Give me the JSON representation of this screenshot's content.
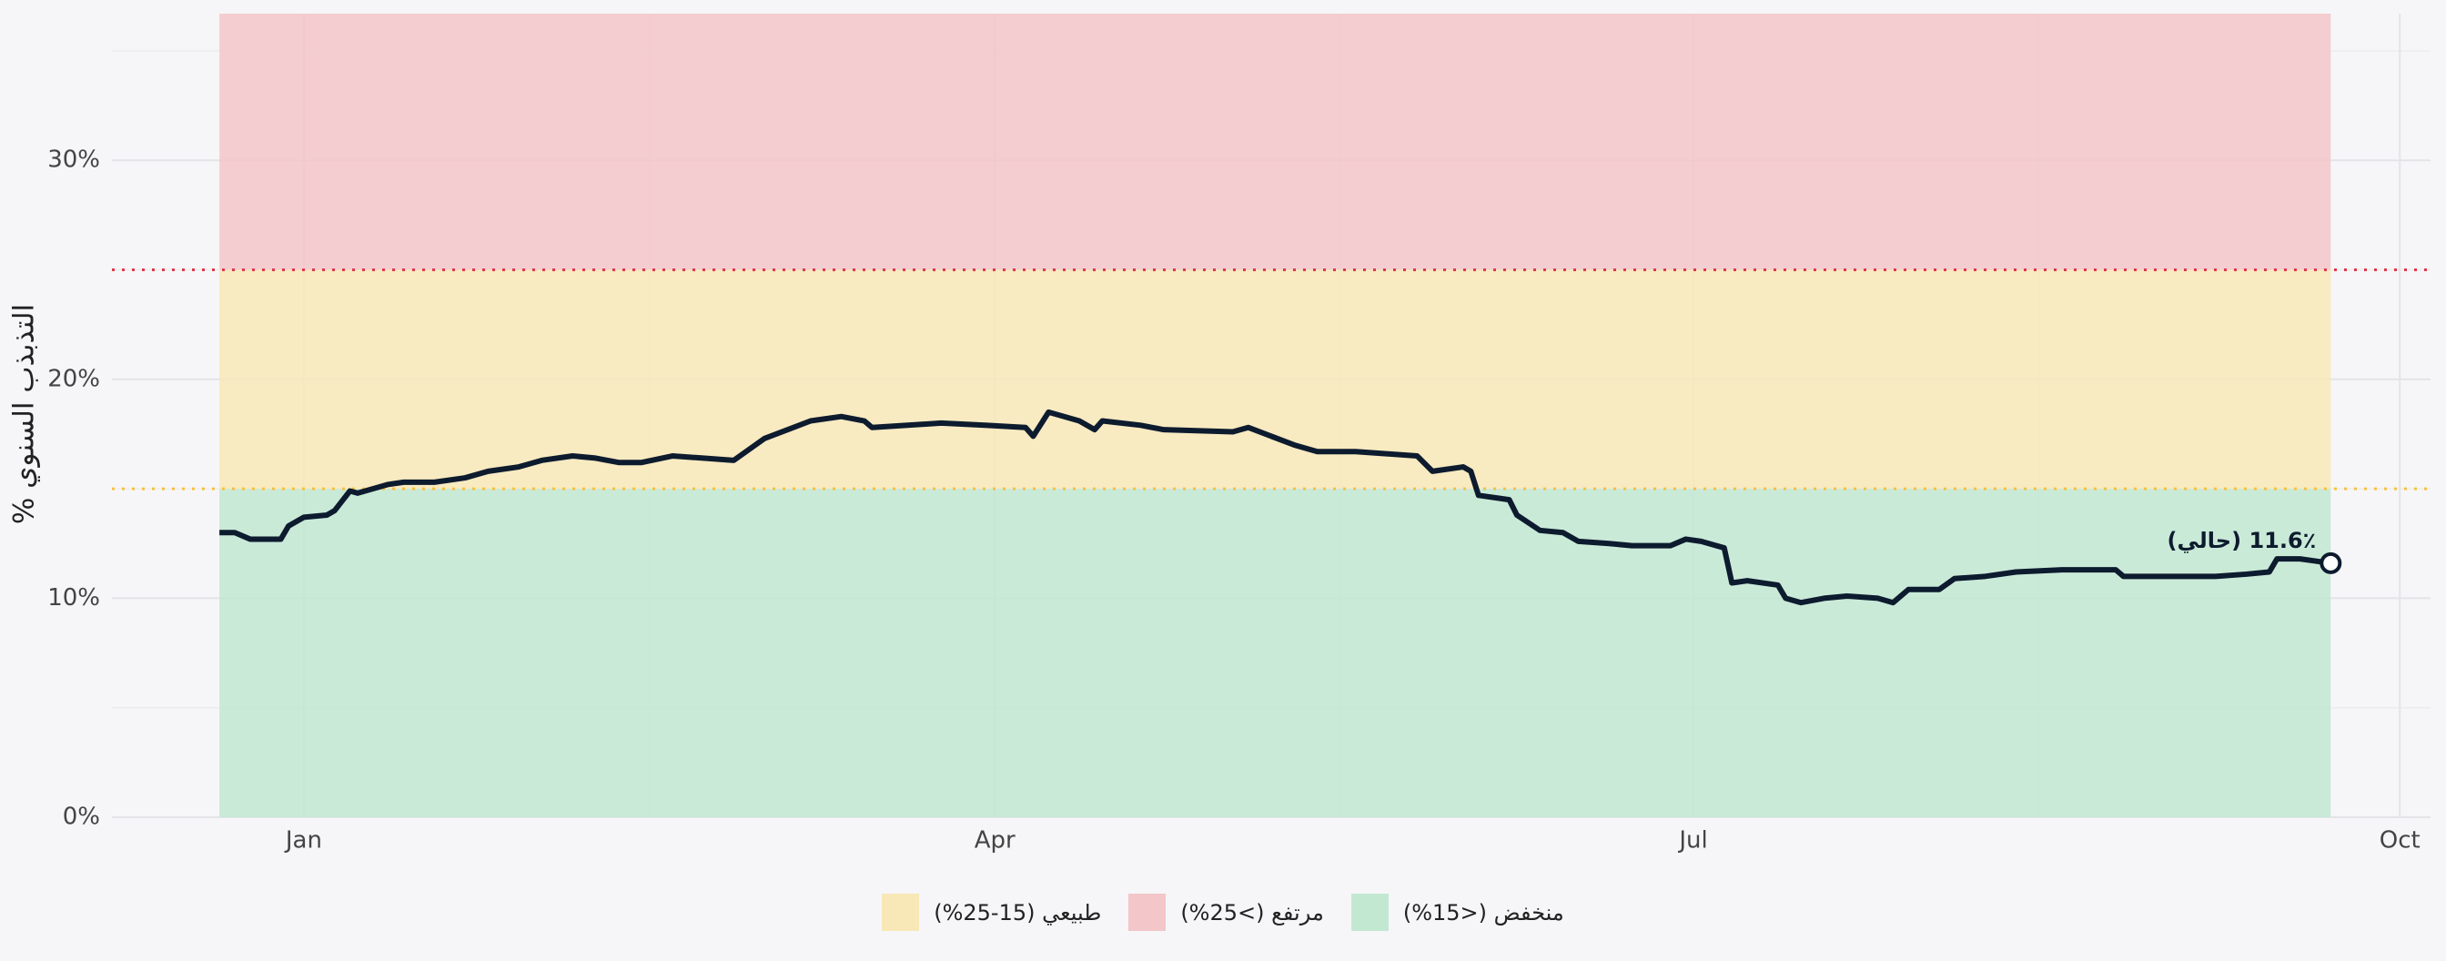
{
  "chart_data": {
    "type": "line",
    "ylabel": "التذبذب السنوي %",
    "x": [
      -11,
      -9,
      -7,
      -3,
      -2,
      0,
      3,
      4,
      6,
      7,
      11,
      13,
      17,
      21,
      24,
      28,
      31,
      35,
      38,
      41,
      44,
      48,
      52,
      56,
      60,
      63,
      66,
      70,
      73,
      74,
      83,
      89,
      94,
      95,
      97,
      101,
      103,
      104,
      109,
      112,
      121,
      123,
      126,
      129,
      132,
      137,
      141,
      145,
      147,
      151,
      152,
      153,
      157,
      158,
      161,
      164,
      166,
      170,
      173,
      178,
      180,
      182,
      185,
      186,
      188,
      192,
      193,
      195,
      198,
      201,
      205,
      207,
      209,
      213,
      215,
      219,
      223,
      229,
      233,
      236,
      237,
      244,
      249,
      253,
      256,
      257,
      260,
      264
    ],
    "series": [
      {
        "color": "#0d1b2e",
        "values": [
          13.0,
          13.0,
          12.7,
          12.7,
          13.3,
          13.7,
          13.8,
          14.0,
          14.9,
          14.8,
          15.2,
          15.3,
          15.3,
          15.5,
          15.8,
          16.0,
          16.3,
          16.5,
          16.4,
          16.2,
          16.2,
          16.5,
          16.4,
          16.3,
          17.3,
          17.7,
          18.1,
          18.3,
          18.1,
          17.8,
          18.0,
          17.9,
          17.8,
          17.4,
          18.5,
          18.1,
          17.7,
          18.1,
          17.9,
          17.7,
          17.6,
          17.8,
          17.4,
          17.0,
          16.7,
          16.7,
          16.6,
          16.5,
          15.8,
          16.0,
          15.8,
          14.7,
          14.5,
          13.8,
          13.1,
          13.0,
          12.6,
          12.5,
          12.4,
          12.4,
          12.7,
          12.6,
          12.3,
          10.7,
          10.8,
          10.6,
          10.0,
          9.8,
          10.0,
          10.1,
          10.0,
          9.8,
          10.4,
          10.4,
          10.9,
          11.0,
          11.2,
          11.3,
          11.3,
          11.3,
          11.0,
          11.0,
          11.0,
          11.1,
          11.2,
          11.8,
          11.8,
          11.6
        ]
      }
    ],
    "current_label": "11.6٪ (حالي)",
    "xlim": [
      -25,
      277
    ],
    "xticks": [
      {
        "value": 0,
        "label": "Jan"
      },
      {
        "value": 90,
        "label": "Apr"
      },
      {
        "value": 181,
        "label": "Jul"
      },
      {
        "value": 273,
        "label": "Oct"
      }
    ],
    "x_minor_grid": [
      45,
      135,
      226
    ],
    "ylim": [
      0,
      36.7
    ],
    "yticks": [
      {
        "value": 0,
        "label": "0%"
      },
      {
        "value": 10,
        "label": "10%"
      },
      {
        "value": 20,
        "label": "20%"
      },
      {
        "value": 30,
        "label": "30%"
      }
    ],
    "y_minor_grid": [
      5,
      15,
      25,
      35
    ],
    "grid": true,
    "bands": [
      {
        "name": "طبيعي (15-25%)",
        "from": 15,
        "to": 25,
        "color": "#f8e7b7"
      },
      {
        "name": "مرتفع (>25%)",
        "from": 25,
        "color": "#f3c6c9"
      },
      {
        "name": "منخفض (<15%)",
        "from": 0,
        "to": 15,
        "color": "#c2e8d2"
      }
    ],
    "thresholds": [
      {
        "value": 15,
        "color": "#f5c242"
      },
      {
        "value": 25,
        "color": "#e0394a"
      }
    ],
    "legend": "bottom"
  }
}
